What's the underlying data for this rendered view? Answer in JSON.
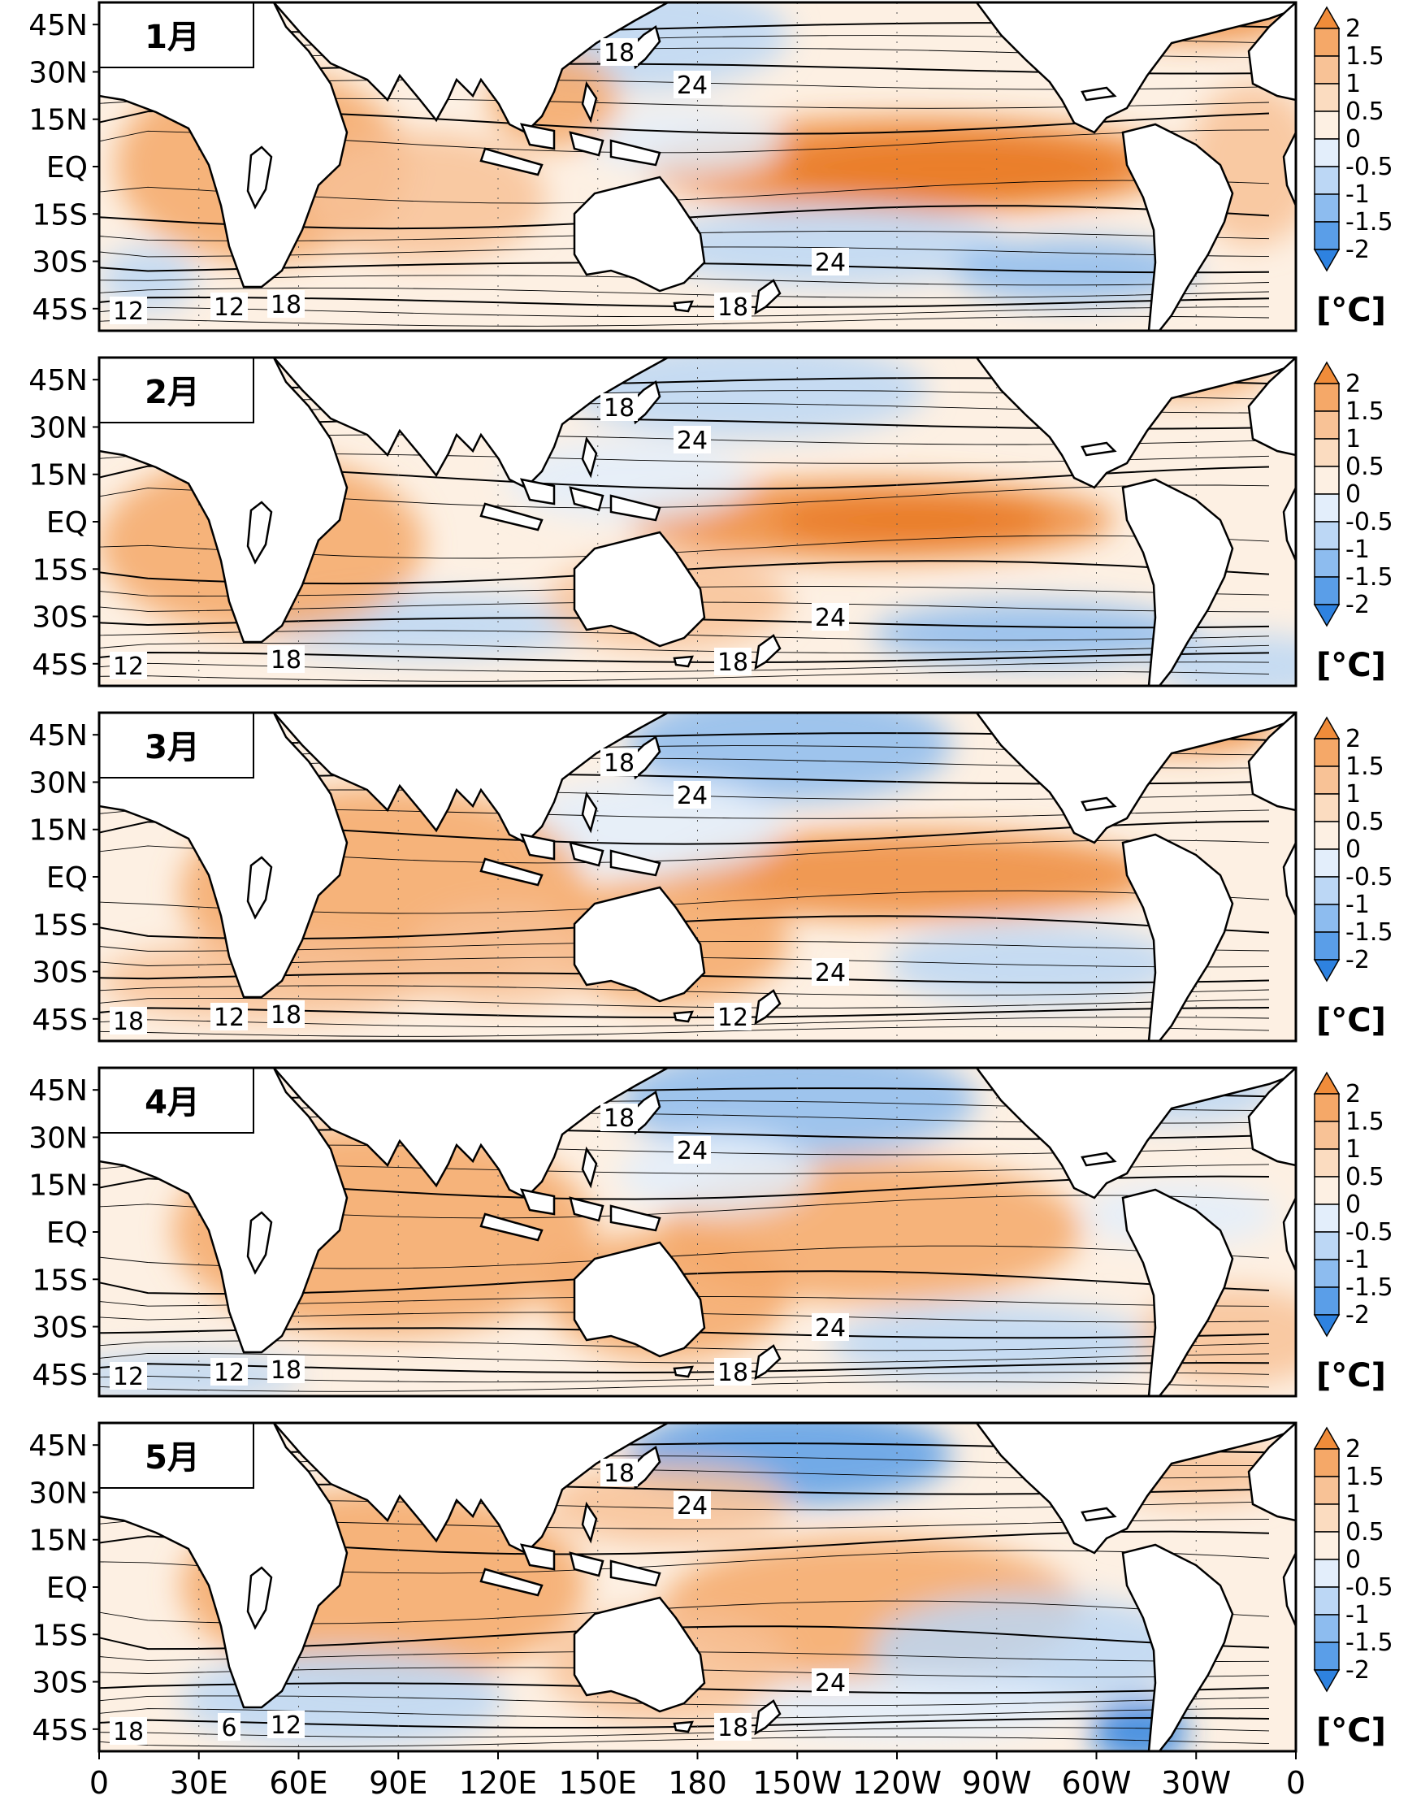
{
  "panels": [
    {
      "month": "1月",
      "contour_labels": [
        "18",
        "24",
        "24",
        "18",
        "12",
        "18",
        "12"
      ]
    },
    {
      "month": "2月",
      "contour_labels": [
        "18",
        "24",
        "24",
        "18",
        "12",
        "18"
      ]
    },
    {
      "month": "3月",
      "contour_labels": [
        "18",
        "24",
        "24",
        "12",
        "18",
        "18",
        "12"
      ]
    },
    {
      "month": "4月",
      "contour_labels": [
        "18",
        "24",
        "24",
        "18",
        "12",
        "18",
        "12"
      ]
    },
    {
      "month": "5月",
      "contour_labels": [
        "18",
        "24",
        "24",
        "18",
        "18",
        "12",
        "6"
      ]
    }
  ],
  "lat_labels": [
    "45N",
    "30N",
    "15N",
    "EQ",
    "15S",
    "30S",
    "45S"
  ],
  "lon_labels": [
    "0",
    "30E",
    "60E",
    "90E",
    "120E",
    "150E",
    "180",
    "150W",
    "120W",
    "90W",
    "60W",
    "30W",
    "0"
  ],
  "colorbar": {
    "ticks": [
      "2",
      "1.5",
      "1",
      "0.5",
      "0",
      "-0.5",
      "-1",
      "-1.5",
      "-2"
    ],
    "unit": "[°C]",
    "colors": [
      "#f08c3a",
      "#f5a868",
      "#f8c296",
      "#fbdcc0",
      "#fdf0e3",
      "#e3eefb",
      "#bcd7f5",
      "#8dbcef",
      "#5a9ee8",
      "#2e82e0"
    ]
  }
}
